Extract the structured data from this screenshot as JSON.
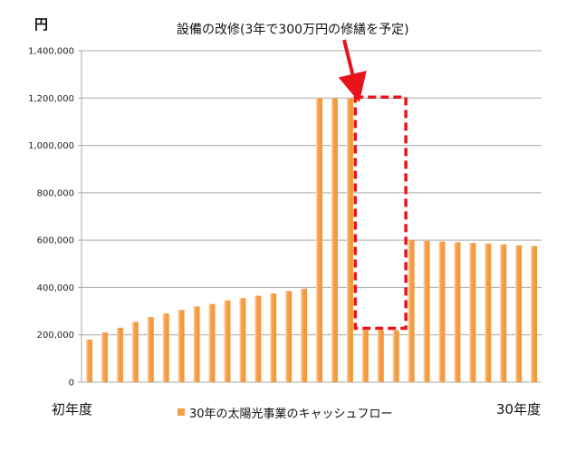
{
  "colors": {
    "bar": "#F7A04B",
    "bar_highlight": "#FDE1C2",
    "annotation": "#E8141C",
    "grid": "#A9A9A9",
    "text": "#111111"
  },
  "chart_data": {
    "type": "bar",
    "unit_label": "円",
    "annotation": {
      "text": "設備の改修(3年で300万円の修繕を予定)",
      "years": [
        19,
        20,
        21
      ],
      "repair_total": 3000000
    },
    "x_start_label": "初年度",
    "x_end_label": "30年度",
    "legend": {
      "label": "30年の太陽光事業のキャッシュフロー",
      "placement": "bottom"
    },
    "grid": true,
    "ylim": [
      0,
      1400000
    ],
    "yticks": [
      0,
      200000,
      400000,
      600000,
      800000,
      1000000,
      1200000,
      1400000
    ],
    "ytick_labels": [
      "0",
      "200,000",
      "400,000",
      "600,000",
      "800,000",
      "1,000,000",
      "1,200,000",
      "1,400,000"
    ],
    "x": [
      1,
      2,
      3,
      4,
      5,
      6,
      7,
      8,
      9,
      10,
      11,
      12,
      13,
      14,
      15,
      16,
      17,
      18,
      19,
      20,
      21,
      22,
      23,
      24,
      25,
      26,
      27,
      28,
      29,
      30
    ],
    "series": [
      {
        "values": [
          180000,
          210000,
          230000,
          255000,
          275000,
          290000,
          305000,
          320000,
          330000,
          345000,
          355000,
          365000,
          375000,
          385000,
          395000,
          1200000,
          1200000,
          1200000,
          220000,
          220000,
          220000,
          600000,
          597000,
          594000,
          591000,
          588000,
          585000,
          582000,
          578000,
          575000
        ]
      }
    ]
  }
}
